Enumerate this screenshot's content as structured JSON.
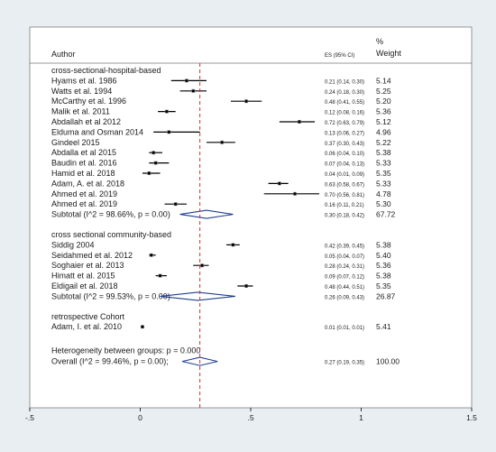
{
  "chart_data": {
    "type": "forest",
    "header": {
      "label": "Author",
      "es_label": "ES (95% CI)",
      "weight_label_top": "%",
      "weight_label": "Weight"
    },
    "xlim": [
      -0.5,
      1.5
    ],
    "xticks": [
      -0.5,
      0,
      0.5,
      1,
      1.5
    ],
    "xtick_labels": [
      "-.5",
      "0",
      ".5",
      "1",
      "1.5"
    ],
    "overall_line": 0.27,
    "groups": [
      {
        "name": "cross-sectional-hospital-based",
        "studies": [
          {
            "label": "Hyams et al. 1986",
            "es": 0.21,
            "lo": 0.14,
            "hi": 0.3,
            "ci_text": "0.21 (0.14, 0.30)",
            "weight": "5.14"
          },
          {
            "label": "Watts et al. 1994",
            "es": 0.24,
            "lo": 0.18,
            "hi": 0.3,
            "ci_text": "0.24 (0.18, 0.30)",
            "weight": "5.25"
          },
          {
            "label": "McCarthy et al. 1996",
            "es": 0.48,
            "lo": 0.41,
            "hi": 0.55,
            "ci_text": "0.48 (0.41, 0.55)",
            "weight": "5.20"
          },
          {
            "label": "Malik et al. 2011",
            "es": 0.12,
            "lo": 0.08,
            "hi": 0.16,
            "ci_text": "0.12 (0.08, 0.16)",
            "weight": "5.36"
          },
          {
            "label": "Abdallah et al 2012",
            "es": 0.72,
            "lo": 0.63,
            "hi": 0.79,
            "ci_text": "0.72 (0.63, 0.79)",
            "weight": "5.12"
          },
          {
            "label": "Elduma and Osman 2014",
            "es": 0.13,
            "lo": 0.06,
            "hi": 0.27,
            "ci_text": "0.13 (0.06, 0.27)",
            "weight": "4.96"
          },
          {
            "label": "Gindeel 2015",
            "es": 0.37,
            "lo": 0.3,
            "hi": 0.43,
            "ci_text": "0.37 (0.30, 0.43)",
            "weight": "5.22"
          },
          {
            "label": "Abdalla et al 2015",
            "es": 0.06,
            "lo": 0.04,
            "hi": 0.1,
            "ci_text": "0.06 (0.04, 0.10)",
            "weight": "5.38"
          },
          {
            "label": "Baudin et al. 2016",
            "es": 0.07,
            "lo": 0.04,
            "hi": 0.13,
            "ci_text": "0.07 (0.04, 0.13)",
            "weight": "5.33"
          },
          {
            "label": "Hamid et al. 2018",
            "es": 0.04,
            "lo": 0.01,
            "hi": 0.09,
            "ci_text": "0.04 (0.01, 0.09)",
            "weight": "5.35"
          },
          {
            "label": "Adam, A. et al. 2018",
            "es": 0.63,
            "lo": 0.58,
            "hi": 0.67,
            "ci_text": "0.63 (0.58, 0.67)",
            "weight": "5.33"
          },
          {
            "label": "Ahmed et al. 2019",
            "es": 0.7,
            "lo": 0.56,
            "hi": 0.81,
            "ci_text": "0.70 (0.56, 0.81)",
            "weight": "4.78"
          },
          {
            "label": "Ahmed et al. 2019",
            "es": 0.16,
            "lo": 0.11,
            "hi": 0.21,
            "ci_text": "0.16 (0.11, 0.21)",
            "weight": "5.30"
          }
        ],
        "subtotal": {
          "label": "Subtotal  (I^2 = 98.66%, p = 0.00)",
          "es": 0.3,
          "lo": 0.18,
          "hi": 0.42,
          "ci_text": "0.30 (0.18, 0.42)",
          "weight": "67.72"
        }
      },
      {
        "name": "cross sectional community-based",
        "studies": [
          {
            "label": "Siddig 2004",
            "es": 0.42,
            "lo": 0.39,
            "hi": 0.45,
            "ci_text": "0.42 (0.39, 0.45)",
            "weight": "5.38"
          },
          {
            "label": "Seidahmed et al. 2012",
            "es": 0.05,
            "lo": 0.04,
            "hi": 0.07,
            "ci_text": "0.05 (0.04, 0.07)",
            "weight": "5.40"
          },
          {
            "label": "Soghaier et al. 2013",
            "es": 0.28,
            "lo": 0.24,
            "hi": 0.31,
            "ci_text": "0.28 (0.24, 0.31)",
            "weight": "5.36"
          },
          {
            "label": "Himatt et al. 2015",
            "es": 0.09,
            "lo": 0.07,
            "hi": 0.12,
            "ci_text": "0.09 (0.07, 0.12)",
            "weight": "5.38"
          },
          {
            "label": "Eldigail et al. 2018",
            "es": 0.48,
            "lo": 0.44,
            "hi": 0.51,
            "ci_text": "0.48 (0.44, 0.51)",
            "weight": "5.35"
          }
        ],
        "subtotal": {
          "label": "Subtotal  (I^2 = 99.53%, p = 0.00)",
          "es": 0.26,
          "lo": 0.09,
          "hi": 0.43,
          "ci_text": "0.26 (0.09, 0.43)",
          "weight": "26.87"
        }
      },
      {
        "name": "retrospective Cohort",
        "studies": [
          {
            "label": "Adam, I. et al. 2010",
            "es": 0.01,
            "lo": 0.01,
            "hi": 0.01,
            "ci_text": "0.01 (0.01, 0.01)",
            "weight": "5.41"
          }
        ]
      }
    ],
    "heterogeneity": "Heterogeneity between groups: p = 0.000",
    "overall": {
      "label": "Overall  (I^2 = 99.46%, p = 0.00);",
      "es": 0.27,
      "lo": 0.19,
      "hi": 0.35,
      "ci_text": "0.27 (0.19, 0.35)",
      "weight": "100.00"
    }
  }
}
